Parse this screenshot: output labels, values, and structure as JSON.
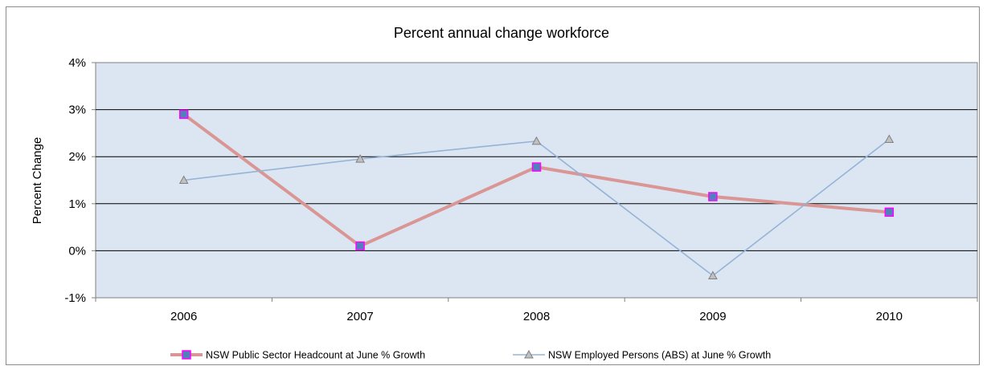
{
  "chart_data": {
    "type": "line",
    "title": "Percent annual change workforce",
    "xlabel": "",
    "ylabel": "Percent Change",
    "categories": [
      "2006",
      "2007",
      "2008",
      "2009",
      "2010"
    ],
    "yticks": [
      "-1%",
      "0%",
      "1%",
      "2%",
      "3%",
      "4%"
    ],
    "ylim": [
      -1,
      4
    ],
    "y_unit": "%",
    "grid": "horizontal",
    "legend_position": "bottom",
    "background": "#dce6f2",
    "series": [
      {
        "name": "NSW Public Sector Headcount at June % Growth",
        "values": [
          2.9,
          0.1,
          1.78,
          1.15,
          0.82
        ],
        "line_color": "#d99694",
        "marker": "square",
        "marker_fill": "#4f81bd",
        "marker_stroke": "#ff00ff"
      },
      {
        "name": "NSW Employed Persons (ABS) at June % Growth",
        "values": [
          1.5,
          1.95,
          2.33,
          -0.53,
          2.37
        ],
        "line_color": "#95b3d7",
        "marker": "triangle",
        "marker_fill": "#c0c0c0",
        "marker_stroke": "#808080"
      }
    ]
  }
}
